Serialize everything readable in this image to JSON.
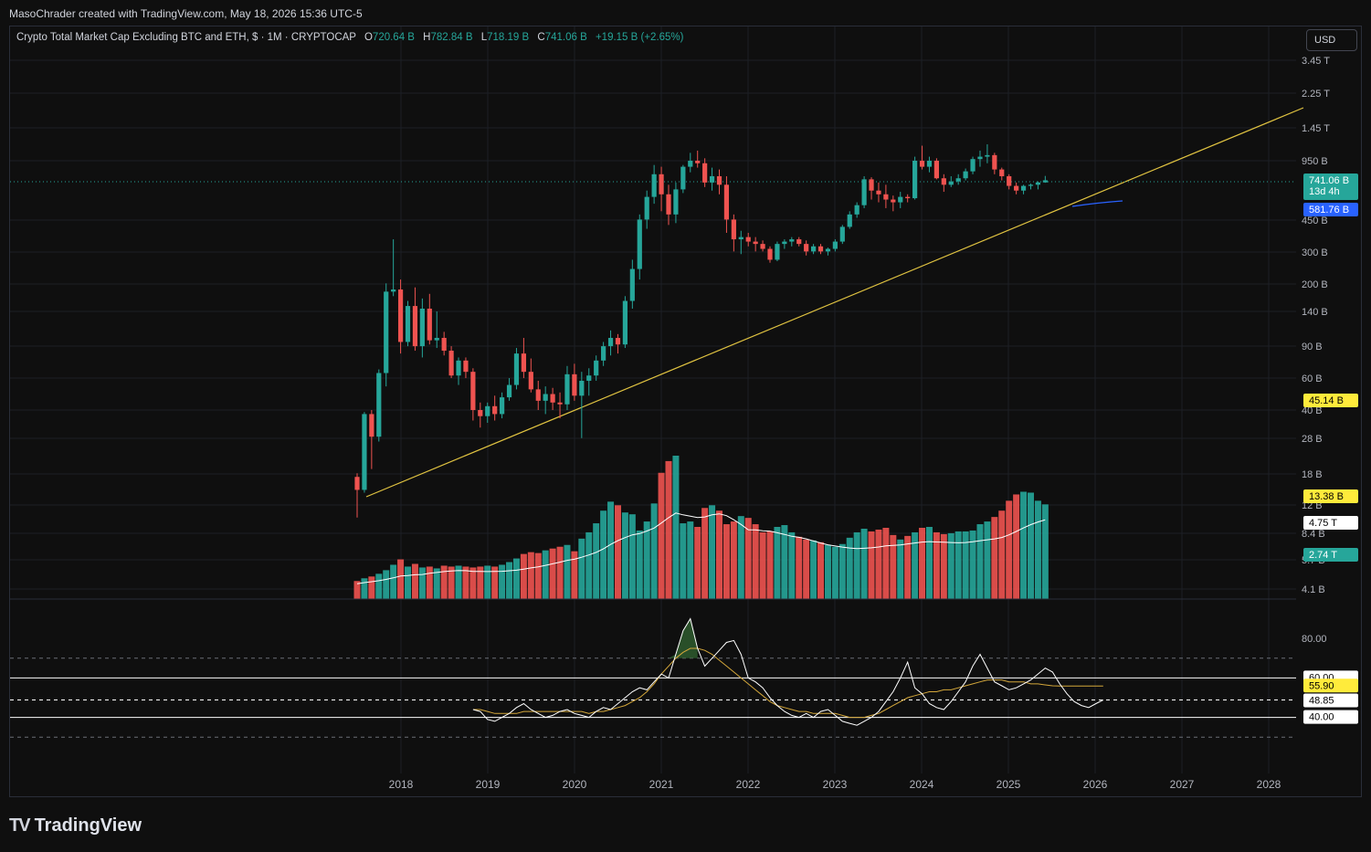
{
  "header": {
    "attribution": "MasoChrader created with TradingView.com, May 18, 2026 15:36 UTC-5"
  },
  "legend": {
    "symbol": "Crypto Total Market Cap Excluding BTC and ETH, $ · 1M · CRYPTOCAP",
    "open_label": "O",
    "open": "720.64 B",
    "high_label": "H",
    "high": "782.84 B",
    "low_label": "L",
    "low": "718.19 B",
    "close_label": "C",
    "close": "741.06 B",
    "change": "+19.15 B (+2.65%)"
  },
  "currency_button": "USD",
  "footer": {
    "brand": "TradingView"
  },
  "colors": {
    "up": "#26a69a",
    "down": "#ef5350",
    "trendline": "#e0c341",
    "volume_ma": "#ffffff",
    "rsi": "#ffffff",
    "rsi_ma": "#d4a73a",
    "current_price": "#26a69a",
    "lower_price": "#2962ff",
    "highlight": "#ffeb3b"
  },
  "chart_data": {
    "type": "candlestick",
    "timeframe": "1M",
    "scale": "log",
    "price_axis_ticks": [
      "3.45 T",
      "2.25 T",
      "1.45 T",
      "950 B",
      "450 B",
      "300 B",
      "200 B",
      "140 B",
      "90 B",
      "60 B",
      "40 B",
      "28 B",
      "18 B",
      "12 B",
      "8.4 B",
      "5.7 B",
      "4.1 B"
    ],
    "x_axis_ticks": [
      "2018",
      "2019",
      "2020",
      "2021",
      "2022",
      "2023",
      "2024",
      "2025",
      "2026",
      "2027",
      "2028"
    ],
    "price_labels": {
      "current": "741.06 B",
      "countdown": "13d 4h",
      "ma_level": "581.76 B",
      "marker_low": "45.14 B",
      "volume_left": "13.38 B",
      "volume_ma": "4.75 T",
      "volume_last": "2.74 T"
    },
    "candles_ohlc_billions": [
      [
        17.1,
        17.9,
        10.2,
        14.5
      ],
      [
        14.5,
        39.0,
        14.0,
        38.0
      ],
      [
        38.0,
        40.0,
        18.9,
        28.5
      ],
      [
        28.5,
        67.0,
        26.8,
        64.0
      ],
      [
        64.0,
        200.0,
        54.0,
        180.0
      ],
      [
        180.0,
        350.0,
        170.0,
        185.0
      ],
      [
        185.0,
        210.0,
        82.0,
        95.0
      ],
      [
        95.0,
        160.0,
        90.0,
        150.0
      ],
      [
        150.0,
        190.0,
        85.0,
        90.0
      ],
      [
        90.0,
        165.0,
        78.0,
        145.0
      ],
      [
        145.0,
        175.0,
        92.0,
        97.0
      ],
      [
        97.0,
        140.0,
        88.0,
        100.0
      ],
      [
        100.0,
        108.0,
        80.0,
        85.0
      ],
      [
        85.0,
        90.0,
        60.0,
        62.0
      ],
      [
        62.0,
        78.0,
        55.0,
        75.0
      ],
      [
        75.0,
        78.0,
        60.0,
        65.0
      ],
      [
        65.0,
        68.0,
        35.0,
        40.0
      ],
      [
        40.0,
        44.0,
        32.0,
        37.0
      ],
      [
        37.0,
        44.0,
        34.0,
        42.0
      ],
      [
        42.0,
        48.0,
        35.0,
        38.0
      ],
      [
        38.0,
        50.0,
        36.0,
        47.0
      ],
      [
        47.0,
        60.0,
        45.0,
        55.0
      ],
      [
        55.0,
        88.0,
        52.0,
        82.0
      ],
      [
        82.0,
        100.0,
        60.0,
        65.0
      ],
      [
        65.0,
        77.0,
        50.0,
        52.0
      ],
      [
        52.0,
        58.0,
        40.0,
        45.0
      ],
      [
        45.0,
        54.0,
        38.0,
        49.0
      ],
      [
        49.0,
        53.0,
        40.0,
        44.0
      ],
      [
        44.0,
        50.0,
        36.0,
        43.0
      ],
      [
        43.0,
        70.0,
        40.0,
        63.0
      ],
      [
        63.0,
        72.0,
        45.0,
        48.0
      ],
      [
        48.0,
        65.0,
        28.0,
        58.0
      ],
      [
        58.0,
        68.0,
        48.0,
        62.0
      ],
      [
        62.0,
        80.0,
        58.0,
        75.0
      ],
      [
        75.0,
        95.0,
        70.0,
        90.0
      ],
      [
        90.0,
        110.0,
        80.0,
        100.0
      ],
      [
        100.0,
        105.0,
        82.0,
        92.0
      ],
      [
        92.0,
        170.0,
        88.0,
        160.0
      ],
      [
        160.0,
        270.0,
        145.0,
        240.0
      ],
      [
        240.0,
        480.0,
        210.0,
        450.0
      ],
      [
        450.0,
        650.0,
        400.0,
        600.0
      ],
      [
        600.0,
        900.0,
        550.0,
        800.0
      ],
      [
        800.0,
        880.0,
        500.0,
        620.0
      ],
      [
        620.0,
        700.0,
        420.0,
        480.0
      ],
      [
        480.0,
        720.0,
        430.0,
        660.0
      ],
      [
        660.0,
        900.0,
        630.0,
        880.0
      ],
      [
        880.0,
        1050.0,
        820.0,
        950.0
      ],
      [
        950.0,
        1080.0,
        870.0,
        920.0
      ],
      [
        920.0,
        980.0,
        680.0,
        720.0
      ],
      [
        720.0,
        870.0,
        650.0,
        780.0
      ],
      [
        780.0,
        850.0,
        620.0,
        700.0
      ],
      [
        700.0,
        780.0,
        380.0,
        450.0
      ],
      [
        450.0,
        480.0,
        300.0,
        350.0
      ],
      [
        350.0,
        390.0,
        290.0,
        360.0
      ],
      [
        360.0,
        380.0,
        320.0,
        340.0
      ],
      [
        340.0,
        360.0,
        300.0,
        330.0
      ],
      [
        330.0,
        345.0,
        300.0,
        310.0
      ],
      [
        310.0,
        320.0,
        260.0,
        270.0
      ],
      [
        270.0,
        340.0,
        265.0,
        330.0
      ],
      [
        330.0,
        350.0,
        310.0,
        340.0
      ],
      [
        340.0,
        360.0,
        320.0,
        350.0
      ],
      [
        350.0,
        360.0,
        320.0,
        330.0
      ],
      [
        330.0,
        345.0,
        285.0,
        300.0
      ],
      [
        300.0,
        330.0,
        290.0,
        320.0
      ],
      [
        320.0,
        330.0,
        290.0,
        300.0
      ],
      [
        300.0,
        315.0,
        285.0,
        310.0
      ],
      [
        310.0,
        350.0,
        300.0,
        340.0
      ],
      [
        340.0,
        420.0,
        330.0,
        410.0
      ],
      [
        410.0,
        500.0,
        400.0,
        480.0
      ],
      [
        480.0,
        560.0,
        460.0,
        540.0
      ],
      [
        540.0,
        780.0,
        520.0,
        750.0
      ],
      [
        750.0,
        770.0,
        580.0,
        650.0
      ],
      [
        650.0,
        720.0,
        560.0,
        620.0
      ],
      [
        620.0,
        700.0,
        520.0,
        580.0
      ],
      [
        580.0,
        610.0,
        500.0,
        560.0
      ],
      [
        560.0,
        640.0,
        520.0,
        600.0
      ],
      [
        600.0,
        620.0,
        560.0,
        590.0
      ],
      [
        590.0,
        1000.0,
        580.0,
        950.0
      ],
      [
        950.0,
        1150.0,
        850.0,
        880.0
      ],
      [
        880.0,
        1000.0,
        820.0,
        950.0
      ],
      [
        950.0,
        980.0,
        750.0,
        760.0
      ],
      [
        760.0,
        800.0,
        640.0,
        700.0
      ],
      [
        700.0,
        780.0,
        680.0,
        730.0
      ],
      [
        730.0,
        800.0,
        700.0,
        760.0
      ],
      [
        760.0,
        860.0,
        740.0,
        830.0
      ],
      [
        830.0,
        1000.0,
        800.0,
        970.0
      ],
      [
        970.0,
        1080.0,
        880.0,
        1000.0
      ],
      [
        1000.0,
        1170.0,
        920.0,
        1020.0
      ],
      [
        1020.0,
        1050.0,
        800.0,
        850.0
      ],
      [
        850.0,
        870.0,
        740.0,
        780.0
      ],
      [
        780.0,
        800.0,
        660.0,
        690.0
      ],
      [
        690.0,
        720.0,
        620.0,
        650.0
      ],
      [
        650.0,
        700.0,
        620.0,
        690.0
      ],
      [
        690.0,
        710.0,
        660.0,
        700.0
      ],
      [
        700.0,
        730.0,
        660.0,
        721.0
      ],
      [
        721.0,
        783.0,
        718.0,
        741.0
      ]
    ],
    "volume_billions": [
      2.0,
      2.3,
      2.5,
      2.8,
      3.2,
      3.8,
      4.4,
      3.6,
      3.9,
      3.5,
      3.6,
      3.4,
      3.7,
      3.6,
      3.7,
      3.6,
      3.5,
      3.6,
      3.7,
      3.6,
      3.8,
      4.1,
      4.5,
      5.0,
      5.2,
      5.1,
      5.4,
      5.6,
      5.8,
      6.0,
      5.3,
      6.7,
      7.4,
      8.4,
      9.8,
      10.8,
      10.4,
      9.6,
      9.4,
      7.6,
      8.6,
      10.6,
      14.0,
      15.3,
      15.9,
      8.4,
      8.6,
      8.0,
      10.1,
      10.4,
      9.8,
      8.3,
      8.6,
      9.2,
      9.0,
      8.3,
      7.4,
      7.5,
      8.0,
      8.2,
      7.4,
      6.9,
      6.6,
      6.5,
      6.3,
      6.0,
      5.8,
      6.1,
      6.8,
      7.4,
      7.8,
      7.5,
      7.7,
      7.9,
      7.1,
      6.6,
      7.0,
      7.4,
      7.9,
      8.0,
      7.4,
      7.2,
      7.3,
      7.5,
      7.5,
      7.6,
      8.3,
      8.6,
      9.1,
      9.8,
      10.9,
      11.6,
      11.9,
      11.8,
      10.9,
      10.5
    ],
    "volume_ma_billions": [
      4.75
    ],
    "rsi": {
      "levels": [
        "80.00",
        "60.00",
        "55.90",
        "48.85",
        "40.00"
      ],
      "overbought": 70,
      "oversold": 30,
      "values": [
        44,
        43,
        39,
        38,
        40,
        42,
        45,
        47,
        44,
        42,
        40,
        41,
        43,
        44,
        42,
        41,
        40,
        43,
        45,
        44,
        47,
        50,
        53,
        55,
        54,
        58,
        62,
        60,
        72,
        84,
        90,
        75,
        66,
        70,
        74,
        78,
        79,
        72,
        60,
        58,
        55,
        50,
        46,
        43,
        41,
        40,
        42,
        40,
        43,
        44,
        41,
        38,
        37,
        36,
        38,
        40,
        43,
        48,
        53,
        60,
        68,
        55,
        52,
        47,
        45,
        44,
        48,
        53,
        58,
        66,
        72,
        65,
        58,
        56,
        54,
        55,
        57,
        59,
        62,
        65,
        63,
        57,
        52,
        48,
        46,
        45,
        47,
        48.85
      ],
      "ma_values": [
        44,
        44,
        43,
        42,
        42,
        42,
        42,
        43,
        43,
        43,
        43,
        43,
        43,
        43,
        43,
        43,
        42,
        43,
        43,
        44,
        45,
        46,
        48,
        50,
        53,
        57,
        62,
        66,
        70,
        73,
        75,
        75,
        74,
        72,
        69,
        66,
        63,
        60,
        57,
        54,
        51,
        48,
        46,
        45,
        44,
        43,
        43,
        42,
        42,
        42,
        42,
        41,
        40,
        40,
        40,
        41,
        42,
        44,
        46,
        48,
        50,
        51,
        52,
        53,
        53,
        54,
        54,
        55,
        56,
        57,
        58,
        59,
        59,
        59,
        58,
        58,
        58,
        57,
        57,
        56.5,
        56,
        55.9,
        55.9,
        55.9,
        55.9,
        55.9,
        55.9,
        55.9
      ]
    }
  }
}
